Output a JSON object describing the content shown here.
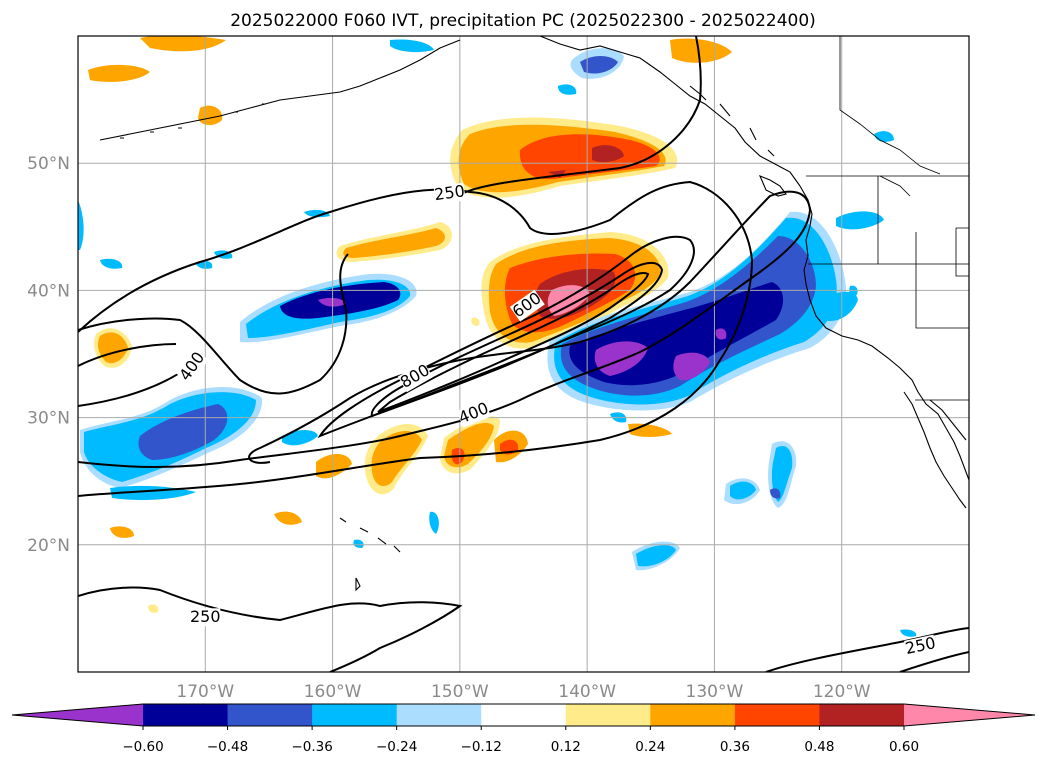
{
  "title": "2025022000 F060 IVT, precipitation PC (2025022300 - 2025022400)",
  "map": {
    "projection": "PlateCarree",
    "lon_range": [
      -180,
      -110
    ],
    "lat_range": [
      10,
      60
    ],
    "grid_spacing_deg": 10,
    "lat_labels": [
      {
        "lat": 20,
        "text": "20°N"
      },
      {
        "lat": 30,
        "text": "30°N"
      },
      {
        "lat": 40,
        "text": "40°N"
      },
      {
        "lat": 50,
        "text": "50°N"
      }
    ],
    "lon_labels": [
      {
        "lon": -170,
        "text": "170°W"
      },
      {
        "lon": -160,
        "text": "160°W"
      },
      {
        "lon": -150,
        "text": "150°W"
      },
      {
        "lon": -140,
        "text": "140°W"
      },
      {
        "lon": -130,
        "text": "130°W"
      },
      {
        "lon": -120,
        "text": "120°W"
      }
    ],
    "ivt_contour_labels": [
      {
        "text": "250",
        "lon": -150.8,
        "lat": 47.6,
        "angle": -8
      },
      {
        "text": "400",
        "lon": -171.0,
        "lat": 34.0,
        "angle": -55
      },
      {
        "text": "800",
        "lon": -153.5,
        "lat": 33.2,
        "angle": -30
      },
      {
        "text": "600",
        "lon": -144.7,
        "lat": 38.8,
        "angle": -35
      },
      {
        "text": "400",
        "lon": -148.9,
        "lat": 30.3,
        "angle": -22
      },
      {
        "text": "250",
        "lon": -170.0,
        "lat": 14.3,
        "angle": 0
      },
      {
        "text": "250",
        "lon": -113.8,
        "lat": 12.0,
        "angle": -12
      }
    ]
  },
  "colorbar": {
    "colors": [
      "#9933cc",
      "#000099",
      "#3355cc",
      "#00bbff",
      "#aaddff",
      "#ffffff",
      "#ffeb8a",
      "#ffa500",
      "#ff4500",
      "#b22222",
      "#ff88aa"
    ],
    "levels": [
      -0.72,
      -0.6,
      -0.48,
      -0.36,
      -0.24,
      -0.12,
      0.12,
      0.24,
      0.36,
      0.48,
      0.6,
      0.72
    ],
    "tick_labels": [
      "−0.60",
      "−0.48",
      "−0.36",
      "−0.24",
      "−0.12",
      "0.12",
      "0.24",
      "0.36",
      "0.48",
      "0.60"
    ],
    "extend": "both"
  }
}
